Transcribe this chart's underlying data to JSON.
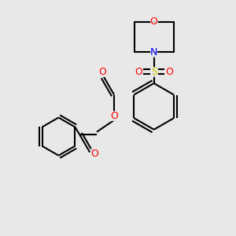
{
  "background_color": "#e8e8e8",
  "bond_color": "#000000",
  "O_color": "#ff0000",
  "N_color": "#0000ff",
  "S_color": "#cccc00",
  "line_width": 1.5,
  "fig_size": [
    3.0,
    3.0
  ],
  "dpi": 100,
  "xlim": [
    0,
    10
  ],
  "ylim": [
    0,
    10
  ]
}
